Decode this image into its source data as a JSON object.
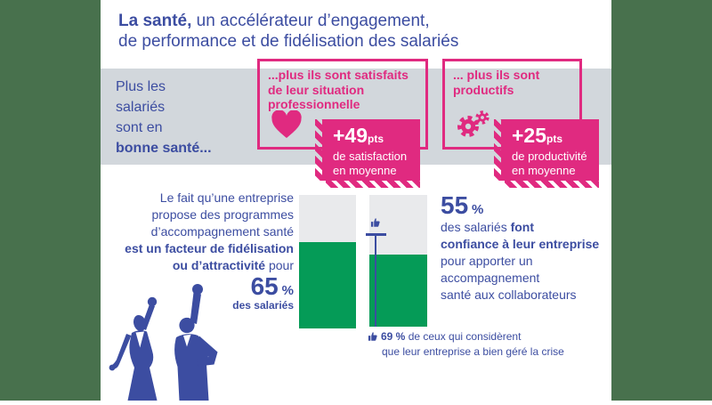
{
  "colors": {
    "accent_blue": "#3C4DA1",
    "accent_pink": "#E02A80",
    "bar_green": "#059B57",
    "band_gray": "#D2D7DC",
    "bar_track_gray": "#E9EAEC",
    "side_band_green": "#48714D"
  },
  "title": {
    "lead_bold": "La santé,",
    "line1_rest": " un accélérateur d’engagement,",
    "line2": "de performance et de fidélisation des salariés"
  },
  "banner": {
    "lines": [
      "Plus les",
      "salariés",
      "sont en"
    ],
    "bold_line": "bonne santé..."
  },
  "satisfaction_box": {
    "icon": "heart-icon",
    "headline_lines": [
      "...plus ils sont satisfaits",
      "de leur situation",
      "professionnelle"
    ],
    "stat": {
      "value": "+49",
      "unit": "pts",
      "desc_lines": [
        "de satisfaction",
        "en moyenne"
      ]
    }
  },
  "productivity_box": {
    "icon": "gears-icon",
    "headline_lines": [
      "... plus ils sont",
      "productifs"
    ],
    "stat": {
      "value": "+25",
      "unit": "pts",
      "desc_lines": [
        "de productivité",
        "en moyenne"
      ]
    }
  },
  "fidelity_stat": {
    "lines_regular": [
      "Le fait qu’une entreprise",
      "propose des programmes",
      "d’accompagnement santé"
    ],
    "line_bold": "est un facteur de fidélisation",
    "line_mixed_bold": "ou d’attractivité",
    "line_mixed_rest": " pour",
    "value": "65",
    "unit": "%",
    "caption": "des salariés"
  },
  "confidence_stat": {
    "value": "55",
    "unit": "%",
    "line1_regular": "des salariés ",
    "line1_bold": "font",
    "line2_bold": "confiance à leur entreprise",
    "lines_regular": [
      "pour apporter un",
      "accompagnement",
      "santé aux collaborateurs"
    ]
  },
  "footnote": {
    "icon": "thumbs-up-icon",
    "bold": "69 %",
    "rest": " de ceux qui considèrent",
    "line2": "que leur entreprise a bien géré la crise"
  },
  "chart_data": {
    "type": "bar",
    "orientation": "vertical",
    "unit": "%",
    "ylim": [
      0,
      100
    ],
    "grid": false,
    "legend": "none",
    "bars": [
      {
        "label": "des salariés pour qui les programmes d’accompagnement santé sont un facteur de fidélisation ou d’attractivité",
        "value": 65
      },
      {
        "label": "des salariés qui font confiance à leur entreprise pour apporter un accompagnement santé aux collaborateurs",
        "value": 55
      }
    ],
    "marker": {
      "bar_index": 1,
      "value": 69,
      "label": "de ceux qui considèrent que leur entreprise a bien géré la crise"
    },
    "bar_color": "#059B57",
    "track_color": "#E9EAEC"
  }
}
